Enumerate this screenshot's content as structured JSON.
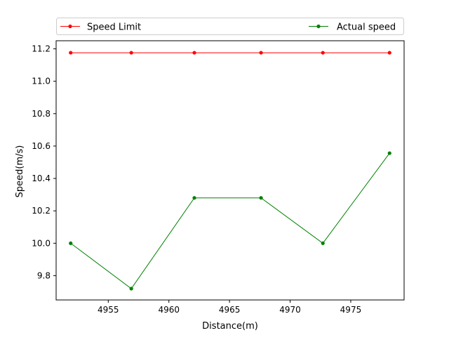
{
  "chart_data": {
    "type": "line",
    "xlabel": "Distance(m)",
    "ylabel": "Speed(m/s)",
    "xlim": [
      4950.7,
      4979.4
    ],
    "ylim": [
      9.65,
      11.25
    ],
    "xticks": [
      4955,
      4960,
      4965,
      4970,
      4975
    ],
    "yticks": [
      9.8,
      10.0,
      10.2,
      10.4,
      10.6,
      10.8,
      11.0,
      11.2
    ],
    "xtick_labels": [
      "4955",
      "4960",
      "4965",
      "4970",
      "4975"
    ],
    "ytick_labels": [
      "9.8",
      "10.0",
      "10.2",
      "10.4",
      "10.6",
      "10.8",
      "11.0",
      "11.2"
    ],
    "grid": false,
    "legend_placement": "top, above plot",
    "series": [
      {
        "name": "Speed Limit",
        "color": "#ff0000",
        "marker": "circle",
        "x": [
          4951.9,
          4956.9,
          4962.1,
          4967.6,
          4972.7,
          4978.2
        ],
        "y": [
          11.176,
          11.176,
          11.176,
          11.176,
          11.176,
          11.176
        ]
      },
      {
        "name": "Actual speed",
        "color": "#008000",
        "marker": "circle",
        "x": [
          4951.9,
          4956.9,
          4962.1,
          4967.6,
          4972.7,
          4978.2
        ],
        "y": [
          10.0,
          9.72,
          10.28,
          10.28,
          10.0,
          10.556
        ]
      }
    ]
  }
}
